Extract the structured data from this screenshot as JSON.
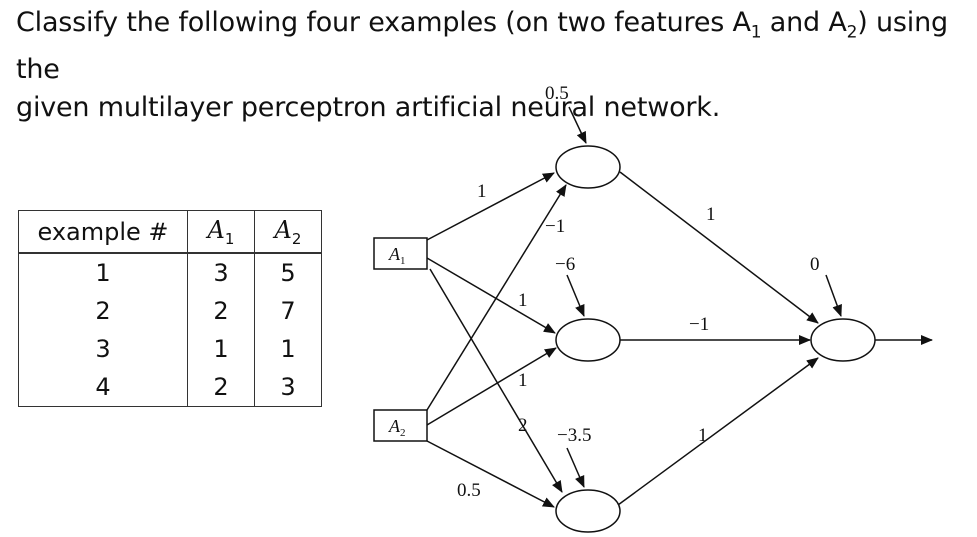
{
  "question": {
    "line1": "Classify the following four examples (on two features A",
    "line2": "given multilayer perceptron artificial neural network.",
    "sub1": "1",
    "and_a": " and A",
    "sub2": "2",
    "tail1": ") using the"
  },
  "table": {
    "headers": {
      "example": "example #",
      "a1": "A",
      "a1_sub": "1",
      "a2": "A",
      "a2_sub": "2"
    },
    "rows": [
      {
        "example": "1",
        "a1": "3",
        "a2": "5"
      },
      {
        "example": "2",
        "a1": "2",
        "a2": "7"
      },
      {
        "example": "3",
        "a1": "1",
        "a2": "1"
      },
      {
        "example": "4",
        "a1": "2",
        "a2": "3"
      }
    ]
  },
  "network": {
    "inputs": {
      "a1": {
        "label": "A",
        "sub": "1"
      },
      "a2": {
        "label": "A",
        "sub": "2"
      }
    },
    "biases": {
      "hidden_top": "0.5",
      "hidden_mid": "−6",
      "hidden_bot": "−3.5",
      "output": "0"
    },
    "weights": {
      "a1_to_top": "1",
      "a2_to_top": "−1",
      "a1_to_mid": "1",
      "a2_to_mid": "1",
      "a1_to_bot": "2",
      "a2_to_bot": "0.5",
      "top_to_out": "1",
      "mid_to_out": "−1",
      "bot_to_out": "1"
    }
  }
}
